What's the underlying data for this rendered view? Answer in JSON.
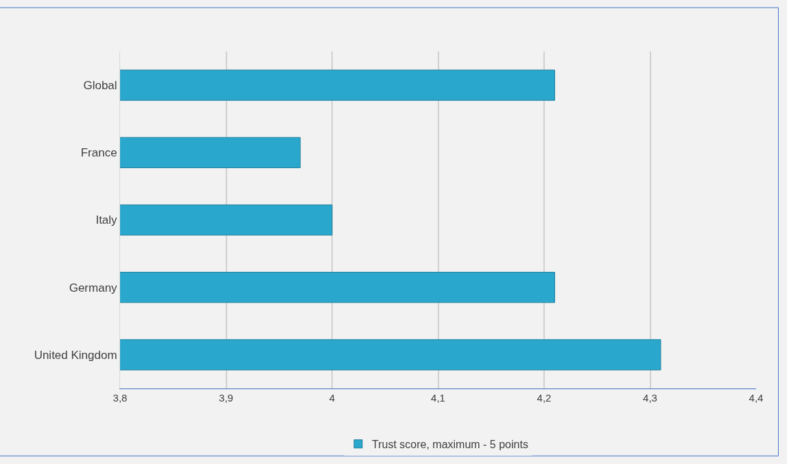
{
  "chart_data": {
    "type": "bar",
    "orientation": "horizontal",
    "categories": [
      "Global",
      "France",
      "Italy",
      "Germany",
      "United Kingdom"
    ],
    "series": [
      {
        "name": "Trust score, maximum - 5 points",
        "color": "#2aa7cc",
        "values": [
          4.21,
          3.97,
          4.0,
          4.21,
          4.31
        ]
      }
    ],
    "xlim": [
      3.8,
      4.4
    ],
    "xticks": [
      {
        "value": 3.8,
        "label": "3,8"
      },
      {
        "value": 3.9,
        "label": "3,9"
      },
      {
        "value": 4,
        "label": "4"
      },
      {
        "value": 4.1,
        "label": "4,1"
      },
      {
        "value": 4.2,
        "label": "4,2"
      },
      {
        "value": 4.3,
        "label": "4,3"
      },
      {
        "value": 4.4,
        "label": "4,4"
      }
    ],
    "grid": "x",
    "legend": "bottom"
  }
}
